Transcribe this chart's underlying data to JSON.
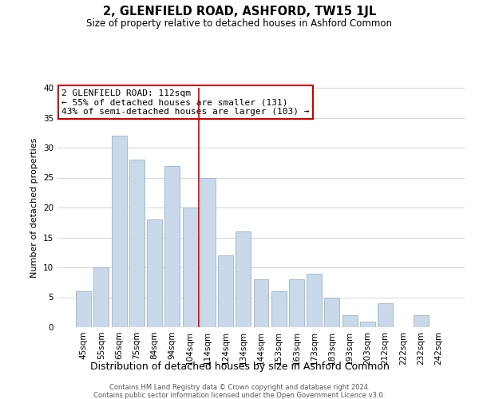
{
  "title": "2, GLENFIELD ROAD, ASHFORD, TW15 1JL",
  "subtitle": "Size of property relative to detached houses in Ashford Common",
  "xlabel": "Distribution of detached houses by size in Ashford Common",
  "ylabel": "Number of detached properties",
  "bar_color": "#c9d9ea",
  "bar_edgecolor": "#9ab4cc",
  "categories": [
    "45sqm",
    "55sqm",
    "65sqm",
    "75sqm",
    "84sqm",
    "94sqm",
    "104sqm",
    "114sqm",
    "124sqm",
    "134sqm",
    "144sqm",
    "153sqm",
    "163sqm",
    "173sqm",
    "183sqm",
    "193sqm",
    "203sqm",
    "212sqm",
    "222sqm",
    "232sqm",
    "242sqm"
  ],
  "values": [
    6,
    10,
    32,
    28,
    18,
    27,
    20,
    25,
    12,
    16,
    8,
    6,
    8,
    9,
    5,
    2,
    1,
    4,
    0,
    2,
    0
  ],
  "vline_index": 7,
  "vline_color": "#cc0000",
  "annotation_line1": "2 GLENFIELD ROAD: 112sqm",
  "annotation_line2": "← 55% of detached houses are smaller (131)",
  "annotation_line3": "43% of semi-detached houses are larger (103) →",
  "annotation_box_edgecolor": "#cc0000",
  "ylim": [
    0,
    40
  ],
  "yticks": [
    0,
    5,
    10,
    15,
    20,
    25,
    30,
    35,
    40
  ],
  "footer1": "Contains HM Land Registry data © Crown copyright and database right 2024.",
  "footer2": "Contains public sector information licensed under the Open Government Licence v3.0.",
  "background_color": "#ffffff",
  "grid_color": "#d0d0d0",
  "title_fontsize": 10.5,
  "subtitle_fontsize": 8.5,
  "ylabel_fontsize": 8,
  "xlabel_fontsize": 9,
  "tick_fontsize": 7.5,
  "annotation_fontsize": 8,
  "footer_fontsize": 6
}
